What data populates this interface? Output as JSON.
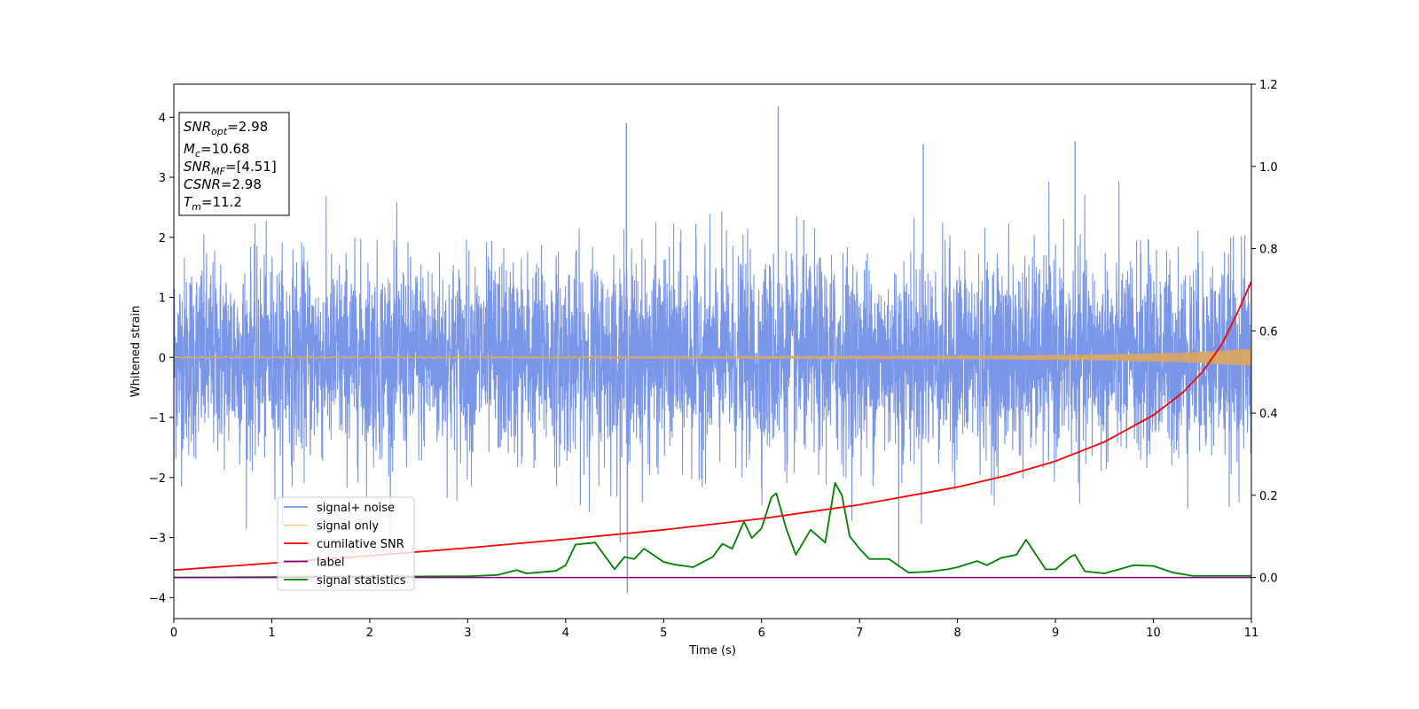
{
  "chart_data": {
    "type": "line",
    "title": "",
    "xlabel": "Time (s)",
    "ylabel": "Whitened strain",
    "xlim": [
      0,
      11
    ],
    "ylim_left": [
      -4.35,
      4.55
    ],
    "ylim_right": [
      -0.1,
      1.2
    ],
    "x_ticks": [
      0,
      1,
      2,
      3,
      4,
      5,
      6,
      7,
      8,
      9,
      10,
      11
    ],
    "y_ticks_left": [
      -4,
      -3,
      -2,
      -1,
      0,
      1,
      2,
      3,
      4
    ],
    "y_ticks_right": [
      0.0,
      0.2,
      0.4,
      0.6,
      0.8,
      1.0,
      1.2
    ],
    "y_ticks_left_labels": [
      "−4",
      "−3",
      "−2",
      "−1",
      "0",
      "1",
      "2",
      "3",
      "4"
    ],
    "y_ticks_right_labels": [
      "0.0",
      "0.2",
      "0.4",
      "0.6",
      "0.8",
      "1.0",
      "1.2"
    ],
    "legend_position": "lower-left",
    "info_box": {
      "snr_opt": {
        "main": "SNR",
        "sub": "opt",
        "value": "=2.98"
      },
      "mc": {
        "main": "M",
        "sub": "c",
        "value": "=10.68"
      },
      "snr_mf": {
        "main": "SNR",
        "sub": "MF",
        "value": "=[4.51]"
      },
      "csnr": {
        "main": "CSNR",
        "value": "=2.98"
      },
      "tm": {
        "main": "T",
        "sub": "m",
        "value": "=11.2"
      }
    },
    "series": [
      {
        "name": "signal+ noise",
        "axis": "left",
        "color": "#7a96e8",
        "description_of_values": "whitened noise, approx ±1 std, peaks to ±4",
        "peaks": [
          {
            "x": 4.62,
            "y": 3.9
          },
          {
            "x": 6.17,
            "y": 4.18
          },
          {
            "x": 7.65,
            "y": 3.55
          },
          {
            "x": 9.2,
            "y": 3.6
          },
          {
            "x": 4.63,
            "y": -3.93
          },
          {
            "x": 7.4,
            "y": -3.5
          }
        ]
      },
      {
        "name": "signal only",
        "axis": "left",
        "color": "#f5b74f",
        "envelope": [
          {
            "x": 0,
            "y": 0.01
          },
          {
            "x": 8,
            "y": 0.02
          },
          {
            "x": 9.5,
            "y": 0.05
          },
          {
            "x": 10.3,
            "y": 0.08
          },
          {
            "x": 11,
            "y": 0.14
          }
        ]
      },
      {
        "name": "cumilative SNR",
        "axis": "right",
        "color": "#ff0000",
        "points": [
          {
            "x": 0,
            "y": 0.018
          },
          {
            "x": 1,
            "y": 0.035
          },
          {
            "x": 2,
            "y": 0.053
          },
          {
            "x": 3,
            "y": 0.072
          },
          {
            "x": 4,
            "y": 0.093
          },
          {
            "x": 5,
            "y": 0.116
          },
          {
            "x": 6,
            "y": 0.143
          },
          {
            "x": 7,
            "y": 0.177
          },
          {
            "x": 8,
            "y": 0.22
          },
          {
            "x": 8.5,
            "y": 0.248
          },
          {
            "x": 9,
            "y": 0.283
          },
          {
            "x": 9.5,
            "y": 0.33
          },
          {
            "x": 10,
            "y": 0.395
          },
          {
            "x": 10.3,
            "y": 0.45
          },
          {
            "x": 10.5,
            "y": 0.5
          },
          {
            "x": 10.7,
            "y": 0.568
          },
          {
            "x": 10.85,
            "y": 0.64
          },
          {
            "x": 11,
            "y": 0.72
          }
        ]
      },
      {
        "name": "label",
        "axis": "right",
        "color": "#800080",
        "points": [
          {
            "x": 0,
            "y": 0.0
          },
          {
            "x": 11,
            "y": 0.0
          }
        ]
      },
      {
        "name": "signal statistics",
        "axis": "right",
        "color": "#008000",
        "points": [
          {
            "x": 0,
            "y": 0.0
          },
          {
            "x": 1.0,
            "y": 0.001
          },
          {
            "x": 2.0,
            "y": 0.002
          },
          {
            "x": 3.0,
            "y": 0.003
          },
          {
            "x": 3.3,
            "y": 0.006
          },
          {
            "x": 3.5,
            "y": 0.018
          },
          {
            "x": 3.6,
            "y": 0.01
          },
          {
            "x": 3.9,
            "y": 0.016
          },
          {
            "x": 4.0,
            "y": 0.03
          },
          {
            "x": 4.1,
            "y": 0.08
          },
          {
            "x": 4.3,
            "y": 0.085
          },
          {
            "x": 4.5,
            "y": 0.02
          },
          {
            "x": 4.6,
            "y": 0.05
          },
          {
            "x": 4.7,
            "y": 0.045
          },
          {
            "x": 4.8,
            "y": 0.07
          },
          {
            "x": 5.0,
            "y": 0.038
          },
          {
            "x": 5.1,
            "y": 0.032
          },
          {
            "x": 5.3,
            "y": 0.025
          },
          {
            "x": 5.5,
            "y": 0.05
          },
          {
            "x": 5.6,
            "y": 0.082
          },
          {
            "x": 5.7,
            "y": 0.07
          },
          {
            "x": 5.82,
            "y": 0.136
          },
          {
            "x": 5.9,
            "y": 0.096
          },
          {
            "x": 6.0,
            "y": 0.12
          },
          {
            "x": 6.1,
            "y": 0.195
          },
          {
            "x": 6.15,
            "y": 0.205
          },
          {
            "x": 6.25,
            "y": 0.12
          },
          {
            "x": 6.35,
            "y": 0.055
          },
          {
            "x": 6.5,
            "y": 0.116
          },
          {
            "x": 6.65,
            "y": 0.085
          },
          {
            "x": 6.75,
            "y": 0.23
          },
          {
            "x": 6.82,
            "y": 0.2
          },
          {
            "x": 6.9,
            "y": 0.1
          },
          {
            "x": 7.0,
            "y": 0.07
          },
          {
            "x": 7.1,
            "y": 0.045
          },
          {
            "x": 7.3,
            "y": 0.045
          },
          {
            "x": 7.5,
            "y": 0.012
          },
          {
            "x": 7.7,
            "y": 0.014
          },
          {
            "x": 7.9,
            "y": 0.02
          },
          {
            "x": 8.0,
            "y": 0.025
          },
          {
            "x": 8.2,
            "y": 0.04
          },
          {
            "x": 8.3,
            "y": 0.03
          },
          {
            "x": 8.45,
            "y": 0.048
          },
          {
            "x": 8.6,
            "y": 0.055
          },
          {
            "x": 8.7,
            "y": 0.092
          },
          {
            "x": 8.9,
            "y": 0.02
          },
          {
            "x": 9.0,
            "y": 0.02
          },
          {
            "x": 9.15,
            "y": 0.05
          },
          {
            "x": 9.2,
            "y": 0.055
          },
          {
            "x": 9.3,
            "y": 0.015
          },
          {
            "x": 9.5,
            "y": 0.01
          },
          {
            "x": 9.8,
            "y": 0.03
          },
          {
            "x": 10.0,
            "y": 0.028
          },
          {
            "x": 10.2,
            "y": 0.012
          },
          {
            "x": 10.4,
            "y": 0.004
          },
          {
            "x": 11.0,
            "y": 0.004
          }
        ]
      }
    ]
  }
}
